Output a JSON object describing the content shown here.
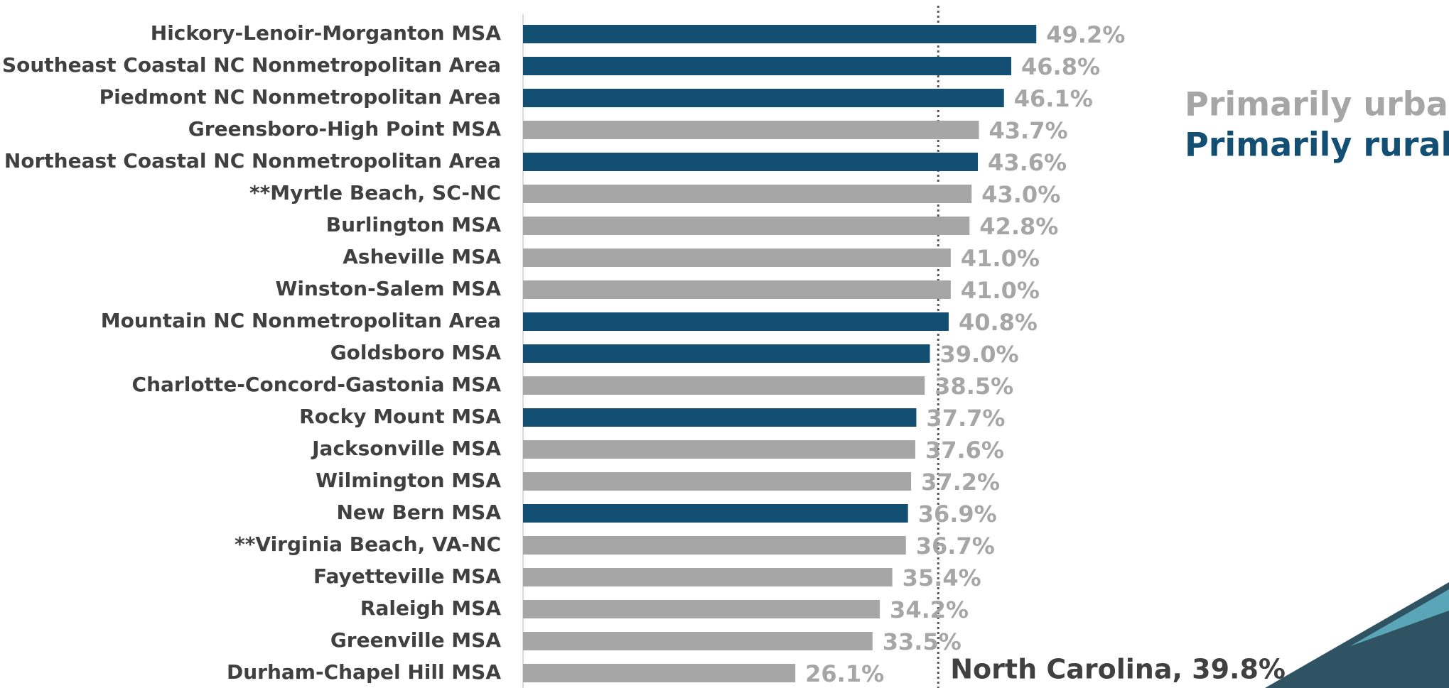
{
  "chart_data": {
    "type": "bar",
    "orientation": "horizontal",
    "categories": [
      "Hickory-Lenoir-Morganton MSA",
      "Southeast Coastal NC Nonmetropolitan Area",
      "Piedmont NC Nonmetropolitan Area",
      "Greensboro-High Point MSA",
      "Northeast Coastal NC Nonmetropolitan Area",
      "**Myrtle Beach, SC-NC",
      "Burlington MSA",
      "Asheville MSA",
      "Winston-Salem MSA",
      "Mountain NC Nonmetropolitan Area",
      "Goldsboro MSA",
      "Charlotte-Concord-Gastonia MSA",
      "Rocky Mount MSA",
      "Jacksonville MSA",
      "Wilmington MSA",
      "New Bern MSA",
      "**Virginia Beach, VA-NC",
      "Fayetteville MSA",
      "Raleigh MSA",
      "Greenville MSA",
      "Durham-Chapel Hill MSA"
    ],
    "series": [
      {
        "name": "Primarily urban",
        "color": "#a6a6a6",
        "values": [
          null,
          null,
          null,
          43.7,
          null,
          43.0,
          42.8,
          41.0,
          41.0,
          null,
          null,
          38.5,
          null,
          37.6,
          37.2,
          null,
          36.7,
          35.4,
          34.2,
          33.5,
          26.1
        ],
        "value_labels": [
          null,
          null,
          null,
          "43.7%",
          null,
          "43.0%",
          "42.8%",
          "41.0%",
          "41.0%",
          null,
          null,
          "38.5%",
          null,
          "37.6%",
          "37.2%",
          null,
          "36.7%",
          "35.4%",
          "34.2%",
          "33.5%",
          "26.1%"
        ]
      },
      {
        "name": "Primarily rural",
        "color": "#134f72",
        "values": [
          49.2,
          46.8,
          46.1,
          null,
          43.6,
          null,
          null,
          null,
          null,
          40.8,
          39.0,
          null,
          37.7,
          null,
          null,
          36.9,
          null,
          null,
          null,
          null,
          null
        ],
        "value_labels": [
          "49.2%",
          "46.8%",
          "46.1%",
          null,
          "43.6%",
          null,
          null,
          null,
          null,
          "40.8%",
          "39.0%",
          null,
          "37.7%",
          null,
          null,
          "36.9%",
          null,
          null,
          null,
          null,
          null
        ]
      }
    ],
    "xlim": [
      0,
      50
    ],
    "reference_line": {
      "value": 39.8,
      "label": "North Carolina, 39.8%"
    }
  }
}
